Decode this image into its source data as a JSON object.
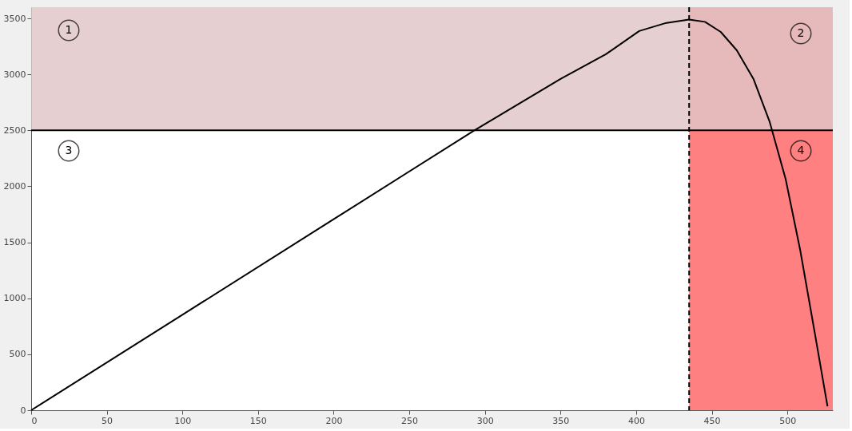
{
  "chart_data": {
    "type": "line",
    "xlim": [
      0,
      530
    ],
    "ylim": [
      0,
      3600
    ],
    "xticks": [
      0,
      50,
      100,
      150,
      200,
      250,
      300,
      350,
      400,
      450,
      500
    ],
    "yticks": [
      0,
      500,
      1000,
      1500,
      2000,
      2500,
      3000,
      3500
    ],
    "grid": false,
    "marker": "none",
    "line_style": "solid",
    "series": [
      {
        "color": "#000000",
        "x": [
          0,
          100,
          200,
          293,
          350,
          380,
          402,
          420,
          435,
          445.5,
          455.9,
          466.5,
          477.5,
          488.3,
          498.8,
          508.5,
          518,
          526.5
        ],
        "values": [
          0,
          853,
          1706,
          2500,
          2960,
          3180,
          3387,
          3460,
          3490,
          3469,
          3379,
          3215,
          2961,
          2574,
          2066,
          1426,
          696,
          35
        ]
      }
    ],
    "bands": [
      {
        "axis": "x",
        "from": 435,
        "to": 530,
        "color": "#ff8080"
      },
      {
        "axis": "y",
        "from": 2500,
        "to": 3600,
        "color": "#e6cfd0"
      }
    ],
    "ref_lines": [
      {
        "axis": "y",
        "value": 2500,
        "color": "#000000",
        "line_style": "solid"
      },
      {
        "axis": "x",
        "value": 435,
        "color": "#000000",
        "line_style": "dashed"
      }
    ],
    "annotations": [
      "1",
      "2",
      "3",
      "4"
    ]
  }
}
